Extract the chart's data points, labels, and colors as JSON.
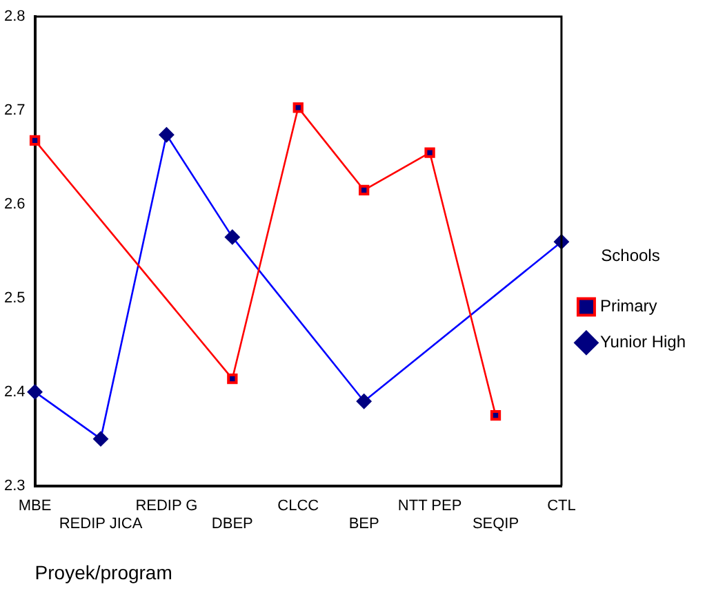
{
  "chart_data": {
    "type": "line",
    "xlabel": "Proyek/program",
    "legend_title": "Schools",
    "categories": [
      "MBE",
      "REDIP JICA",
      "REDIP G",
      "DBEP",
      "CLCC",
      "BEP",
      "NTT PEP",
      "SEQIP",
      "CTL"
    ],
    "series": [
      {
        "name": "Primary",
        "color": "#ff0000",
        "marker": "square",
        "values": [
          2.668,
          null,
          null,
          2.414,
          2.703,
          2.615,
          2.655,
          2.375,
          null
        ]
      },
      {
        "name": "Yunior High",
        "color": "#0000ff",
        "marker": "diamond",
        "values": [
          2.4,
          2.35,
          2.674,
          2.565,
          null,
          2.39,
          null,
          null,
          2.56
        ]
      }
    ],
    "ylim": [
      2.3,
      2.8
    ],
    "yticks": [
      2.3,
      2.4,
      2.5,
      2.6,
      2.7,
      2.8
    ],
    "grid": false,
    "legend": "right",
    "line_style": "solid"
  }
}
